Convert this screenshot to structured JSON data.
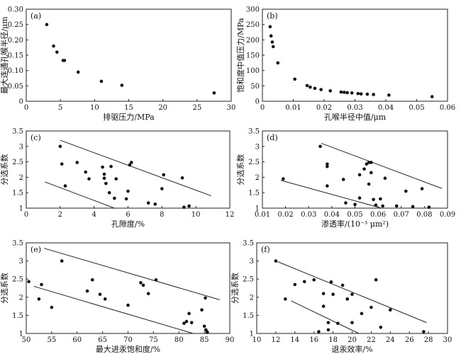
{
  "chart_data": [
    {
      "type": "scatter",
      "panel": "(a)",
      "xlabel": "排驱压力/MPa",
      "ylabel": "最大连通孔喉半径/μm",
      "xlim": [
        0,
        30
      ],
      "ylim": [
        0,
        0.3
      ],
      "xticks": [
        "0",
        "5",
        "10",
        "15",
        "20",
        "25",
        "30"
      ],
      "yticks": [
        "0",
        "0.05",
        "0.10",
        "0.15",
        "0.20",
        "0.25",
        "0.30"
      ],
      "x": [
        3.0,
        4.0,
        4.5,
        5.4,
        5.6,
        7.6,
        11.0,
        14.0,
        27.5
      ],
      "y": [
        0.25,
        0.18,
        0.16,
        0.133,
        0.133,
        0.095,
        0.065,
        0.052,
        0.027
      ],
      "lines": []
    },
    {
      "type": "scatter",
      "panel": "(b)",
      "xlabel": "孔喉半径中值/μm",
      "ylabel": "饱和度中值压力/MPa",
      "xlim": [
        0,
        0.06
      ],
      "ylim": [
        0,
        300
      ],
      "xticks": [
        "0",
        "0.01",
        "0.02",
        "0.03",
        "0.04",
        "0.05",
        "0.06"
      ],
      "yticks": [
        "0",
        "50",
        "100",
        "150",
        "200",
        "250",
        "300"
      ],
      "x": [
        0.0025,
        0.0028,
        0.0032,
        0.0035,
        0.005,
        0.0105,
        0.0145,
        0.0155,
        0.017,
        0.019,
        0.022,
        0.0255,
        0.0265,
        0.0275,
        0.029,
        0.031,
        0.032,
        0.034,
        0.036,
        0.041,
        0.055
      ],
      "y": [
        243,
        213,
        193,
        178,
        125,
        72,
        51,
        46,
        42,
        38,
        34,
        30,
        29,
        28,
        27,
        25,
        24,
        23,
        22,
        20,
        15
      ],
      "lines": []
    },
    {
      "type": "scatter",
      "panel": "(c)",
      "xlabel": "孔隙度/%",
      "ylabel": "分选系数",
      "xlim": [
        0,
        12
      ],
      "ylim": [
        1,
        3.5
      ],
      "xticks": [
        "0",
        "2",
        "4",
        "6",
        "8",
        "10",
        "12"
      ],
      "yticks": [
        "1",
        "1.5",
        "2",
        "2.5",
        "3",
        "3.5"
      ],
      "x": [
        2.0,
        2.1,
        2.3,
        3.0,
        3.5,
        3.7,
        4.5,
        4.6,
        4.6,
        4.7,
        4.9,
        5.0,
        5.2,
        5.3,
        5.9,
        6.0,
        6.1,
        6.2,
        7.2,
        7.6,
        8.0,
        8.1,
        9.2,
        9.3,
        9.6
      ],
      "y": [
        3.0,
        2.43,
        1.72,
        2.48,
        2.17,
        1.95,
        2.33,
        2.1,
        1.97,
        1.8,
        1.5,
        2.35,
        1.32,
        1.95,
        1.3,
        1.55,
        2.4,
        2.48,
        1.17,
        1.13,
        1.63,
        2.08,
        1.98,
        1.03,
        1.07
      ],
      "lines": [
        {
          "x1": 2.0,
          "y1": 3.2,
          "x2": 10.9,
          "y2": 1.4
        },
        {
          "x1": 1.1,
          "y1": 1.85,
          "x2": 5.2,
          "y2": 1.0
        }
      ]
    },
    {
      "type": "scatter",
      "panel": "(d)",
      "xlabel": "渗透率/(10⁻³ μm²)",
      "ylabel": "分选系数",
      "xlim": [
        0.01,
        0.09
      ],
      "ylim": [
        1,
        3.5
      ],
      "xticks": [
        "0.01",
        "0.02",
        "0.03",
        "0.04",
        "0.05",
        "0.06",
        "0.07",
        "0.08",
        "0.09"
      ],
      "yticks": [
        "1",
        "1.5",
        "2",
        "2.5",
        "3",
        "3.5"
      ],
      "x": [
        0.019,
        0.035,
        0.038,
        0.038,
        0.038,
        0.045,
        0.046,
        0.05,
        0.052,
        0.052,
        0.054,
        0.055,
        0.056,
        0.056,
        0.057,
        0.057,
        0.058,
        0.059,
        0.061,
        0.062,
        0.063,
        0.068,
        0.072,
        0.075,
        0.079,
        0.082
      ],
      "y": [
        1.95,
        3.0,
        2.43,
        2.35,
        1.72,
        1.93,
        1.17,
        1.12,
        2.08,
        1.33,
        2.27,
        2.43,
        2.48,
        1.78,
        2.48,
        2.15,
        1.28,
        1.1,
        1.3,
        1.07,
        1.97,
        1.07,
        1.55,
        1.05,
        1.63,
        1.03
      ],
      "lines": [
        {
          "x1": 0.0355,
          "y1": 3.1,
          "x2": 0.0875,
          "y2": 1.64
        },
        {
          "x1": 0.018,
          "y1": 1.9,
          "x2": 0.0615,
          "y2": 1.0
        }
      ]
    },
    {
      "type": "scatter",
      "panel": "(e)",
      "xlabel": "最大进汞饱和度/%",
      "ylabel": "分选系数",
      "xlim": [
        50,
        90
      ],
      "ylim": [
        1,
        3.5
      ],
      "xticks": [
        "50",
        "55",
        "60",
        "65",
        "70",
        "75",
        "80",
        "85",
        "90"
      ],
      "yticks": [
        "1",
        "1.5",
        "2",
        "2.5",
        "3",
        "3.5"
      ],
      "x": [
        50.5,
        52.5,
        53.0,
        55.0,
        57.0,
        62.0,
        63.0,
        64.5,
        65.5,
        70.0,
        72.5,
        73.0,
        74.0,
        75.5,
        81.0,
        81.5,
        82.0,
        82.5,
        84.5,
        85.0,
        85.2,
        85.3,
        85.5,
        85.6
      ],
      "y": [
        2.43,
        1.95,
        2.35,
        1.72,
        3.0,
        2.17,
        2.48,
        2.08,
        1.95,
        1.78,
        2.4,
        2.33,
        2.1,
        2.48,
        1.28,
        1.33,
        1.55,
        1.3,
        1.65,
        1.2,
        1.98,
        1.1,
        1.05,
        1.03
      ],
      "lines": [
        {
          "x1": 53.5,
          "y1": 3.35,
          "x2": 88.0,
          "y2": 1.93
        },
        {
          "x1": 51.5,
          "y1": 2.3,
          "x2": 82.8,
          "y2": 1.0
        }
      ]
    },
    {
      "type": "scatter",
      "panel": "(f)",
      "xlabel": "退汞效率/%",
      "ylabel": "分选系数",
      "xlim": [
        10,
        30
      ],
      "ylim": [
        1,
        3.5
      ],
      "xticks": [
        "10",
        "12",
        "14",
        "16",
        "18",
        "20",
        "22",
        "24",
        "26",
        "28",
        "30"
      ],
      "yticks": [
        "1",
        "1.5",
        "2",
        "2.5",
        "3",
        "3.5"
      ],
      "x": [
        12.0,
        13.0,
        14.0,
        15.0,
        16.0,
        16.5,
        17.0,
        17.0,
        17.5,
        17.5,
        17.8,
        18.0,
        18.5,
        19.0,
        19.5,
        20.0,
        20.0,
        21.0,
        22.0,
        22.5,
        23.0,
        24.0,
        27.5
      ],
      "y": [
        3.0,
        1.95,
        2.35,
        2.43,
        2.48,
        1.05,
        2.1,
        1.75,
        1.3,
        1.1,
        2.42,
        2.08,
        1.28,
        2.33,
        1.95,
        2.08,
        1.3,
        1.55,
        1.72,
        2.48,
        1.17,
        1.65,
        1.05
      ],
      "lines": [
        {
          "x1": 12.2,
          "y1": 2.98,
          "x2": 27.8,
          "y2": 1.3
        },
        {
          "x1": 13.6,
          "y1": 1.9,
          "x2": 20.7,
          "y2": 1.0
        }
      ]
    }
  ]
}
